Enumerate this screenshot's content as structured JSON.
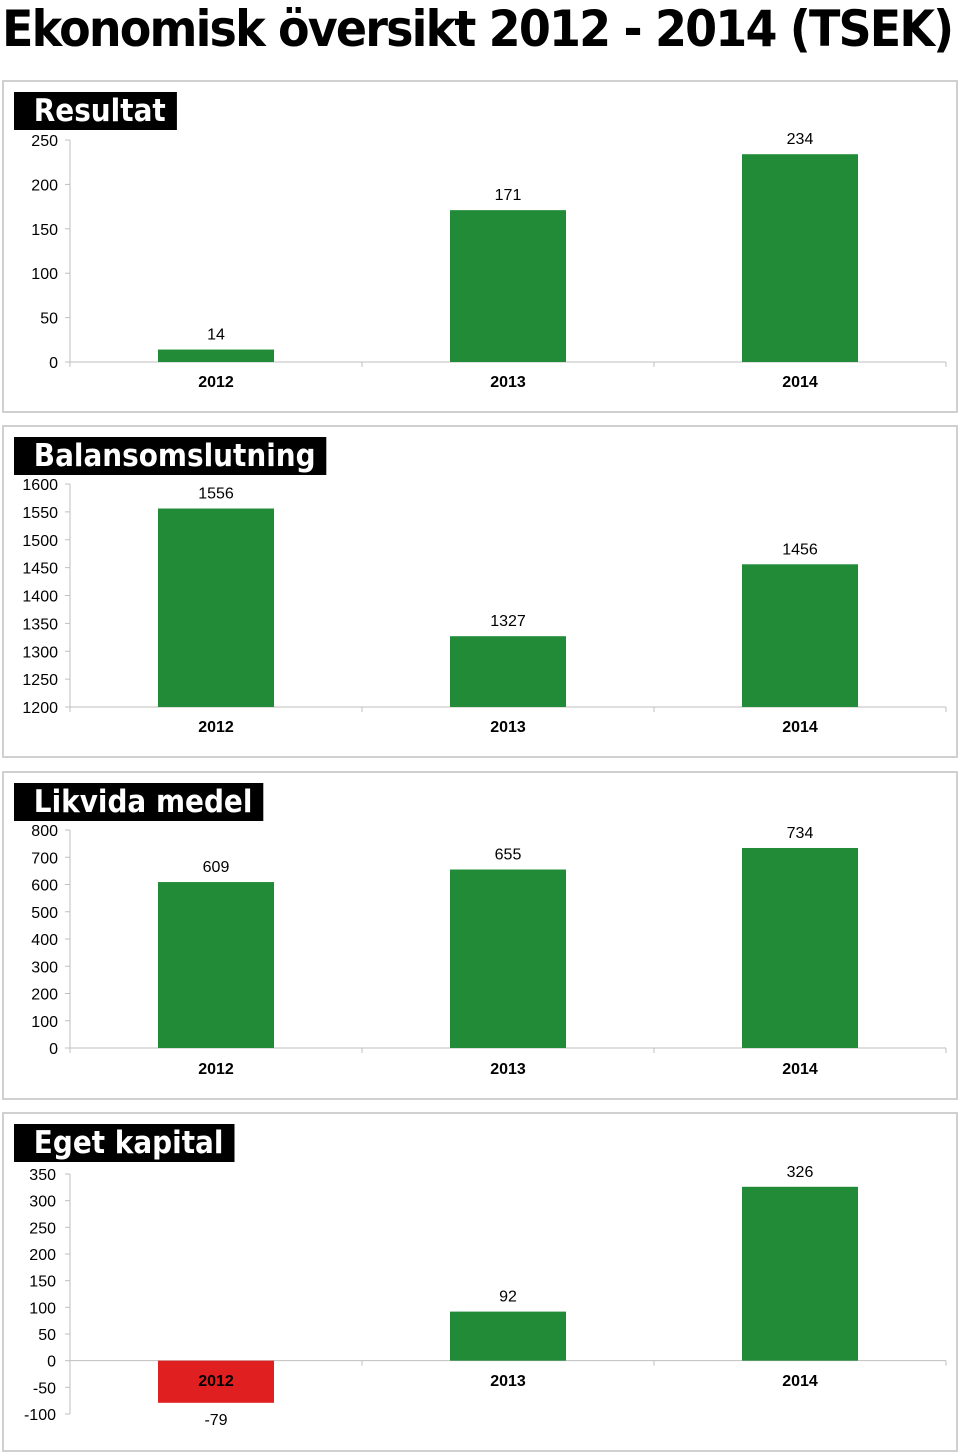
{
  "page": {
    "title": "Ekonomisk översikt 2012 - 2014 (TSEK)"
  },
  "colors": {
    "positive": "#228b38",
    "negative": "#e02020",
    "axis": "#bfbfbf"
  },
  "chart_data": [
    {
      "type": "bar",
      "title": "Resultat",
      "categories": [
        "2012",
        "2013",
        "2014"
      ],
      "values": [
        14,
        171,
        234
      ],
      "ylim": [
        0,
        250
      ],
      "yticks": [
        0,
        50,
        100,
        150,
        200,
        250
      ],
      "grid": false,
      "legend": "none"
    },
    {
      "type": "bar",
      "title": "Balansomslutning",
      "categories": [
        "2012",
        "2013",
        "2014"
      ],
      "values": [
        1556,
        1327,
        1456
      ],
      "ylim": [
        1200,
        1600
      ],
      "yticks": [
        1200,
        1250,
        1300,
        1350,
        1400,
        1450,
        1500,
        1550,
        1600
      ],
      "grid": false,
      "legend": "none"
    },
    {
      "type": "bar",
      "title": "Likvida medel",
      "categories": [
        "2012",
        "2013",
        "2014"
      ],
      "values": [
        609,
        655,
        734
      ],
      "ylim": [
        0,
        800
      ],
      "yticks": [
        0,
        100,
        200,
        300,
        400,
        500,
        600,
        700,
        800
      ],
      "grid": false,
      "legend": "none"
    },
    {
      "type": "bar",
      "title": "Eget kapital",
      "categories": [
        "2012",
        "2013",
        "2014"
      ],
      "values": [
        -79,
        92,
        326
      ],
      "ylim": [
        -100,
        350
      ],
      "yticks": [
        -100,
        -50,
        0,
        50,
        100,
        150,
        200,
        250,
        300,
        350
      ],
      "grid": false,
      "legend": "none"
    }
  ]
}
